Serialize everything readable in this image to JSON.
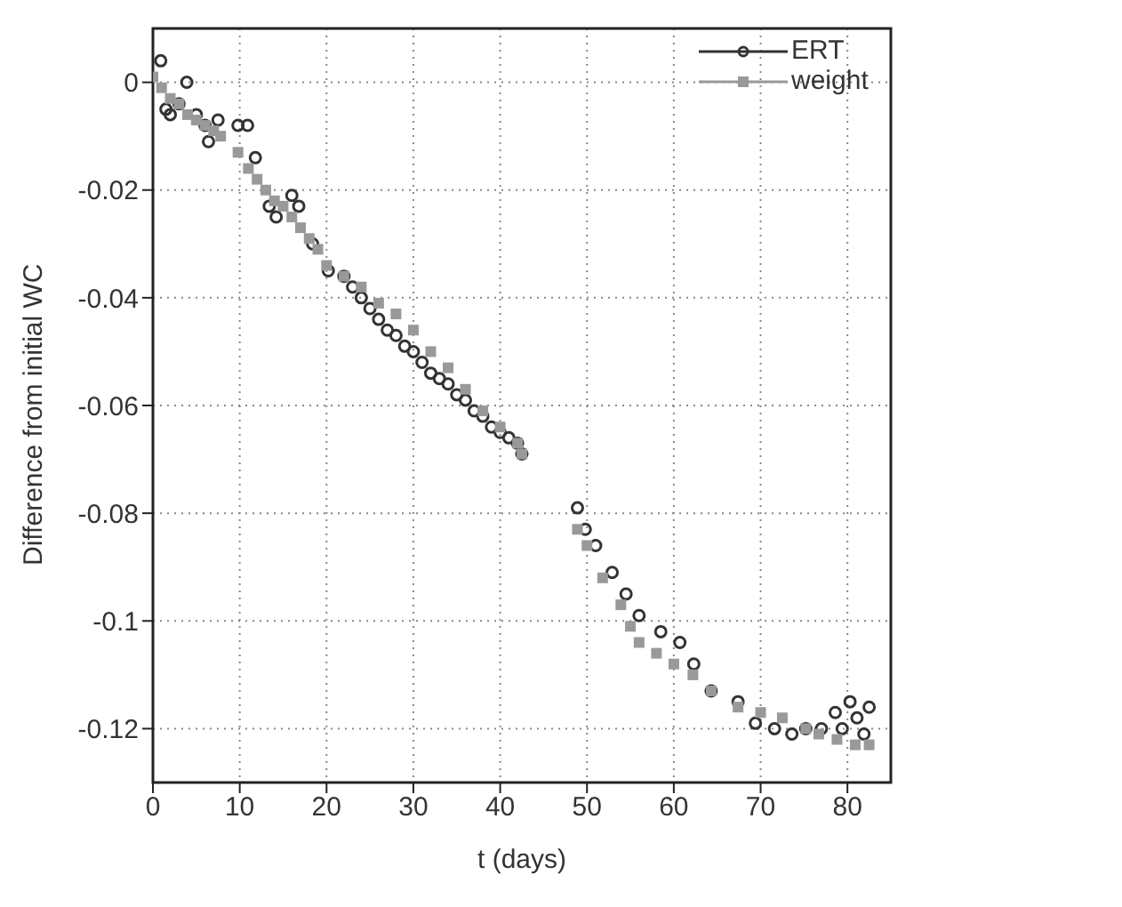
{
  "chart_data": {
    "type": "scatter",
    "xlabel": "t (days)",
    "ylabel": "Difference from initial WC",
    "xlim": [
      0,
      85
    ],
    "xticks": [
      0,
      10,
      20,
      30,
      40,
      50,
      60,
      70,
      80
    ],
    "ylim": [
      -0.13,
      0.01
    ],
    "yticks": [
      0,
      -0.02,
      -0.04,
      -0.06,
      -0.08,
      -0.1,
      -0.12
    ],
    "grid": true,
    "legend": "top right",
    "series": [
      {
        "name": "ERT",
        "color": "#333333",
        "marker": "circle",
        "x": [
          0.9,
          1.5,
          2,
          3,
          3.9,
          5,
          6,
          6.4,
          7.5,
          9.8,
          10.9,
          11.8,
          13.4,
          14.2,
          16,
          16.8,
          18.4,
          20.2,
          22,
          23,
          24,
          25,
          26,
          27,
          28,
          29,
          30,
          31,
          32,
          33,
          34,
          35,
          36,
          37,
          38,
          39,
          40,
          41,
          42,
          42.5,
          48.9,
          49.8,
          51,
          52.9,
          54.5,
          56,
          58.5,
          60.7,
          62.3,
          64.3,
          67.4,
          69.4,
          71.6,
          73.6,
          75.2,
          77,
          78.6,
          79.4,
          80.3,
          81.1,
          81.9,
          82.5
        ],
        "values": [
          0.004,
          -0.005,
          -0.006,
          -0.004,
          0,
          -0.006,
          -0.008,
          -0.011,
          -0.007,
          -0.008,
          -0.008,
          -0.014,
          -0.023,
          -0.025,
          -0.021,
          -0.023,
          -0.03,
          -0.035,
          -0.036,
          -0.038,
          -0.04,
          -0.042,
          -0.044,
          -0.046,
          -0.047,
          -0.049,
          -0.05,
          -0.052,
          -0.054,
          -0.055,
          -0.056,
          -0.058,
          -0.059,
          -0.061,
          -0.062,
          -0.064,
          -0.065,
          -0.066,
          -0.067,
          -0.069,
          -0.079,
          -0.083,
          -0.086,
          -0.091,
          -0.095,
          -0.099,
          -0.102,
          -0.104,
          -0.108,
          -0.113,
          -0.115,
          -0.119,
          -0.12,
          -0.121,
          -0.12,
          -0.12,
          -0.117,
          -0.12,
          -0.115,
          -0.118,
          -0.121,
          -0.116
        ]
      },
      {
        "name": "weight",
        "color": "#999999",
        "marker": "square",
        "x": [
          0,
          1,
          2,
          3,
          4,
          5,
          6,
          7,
          7.8,
          9.8,
          11,
          12,
          13,
          14,
          15,
          16,
          17,
          18,
          19,
          20,
          22,
          24,
          26,
          28,
          30,
          32,
          34,
          36,
          38,
          40,
          42,
          42.5,
          48.9,
          50,
          51.8,
          53.9,
          55,
          56,
          58,
          60,
          62.2,
          64.3,
          67.4,
          70,
          72.5,
          75.2,
          76.7,
          78.8,
          80.9,
          82.5
        ],
        "values": [
          0.001,
          -0.001,
          -0.003,
          -0.004,
          -0.006,
          -0.007,
          -0.008,
          -0.009,
          -0.01,
          -0.013,
          -0.016,
          -0.018,
          -0.02,
          -0.022,
          -0.023,
          -0.025,
          -0.027,
          -0.029,
          -0.031,
          -0.034,
          -0.036,
          -0.038,
          -0.041,
          -0.043,
          -0.046,
          -0.05,
          -0.053,
          -0.057,
          -0.061,
          -0.064,
          -0.067,
          -0.069,
          -0.083,
          -0.086,
          -0.092,
          -0.097,
          -0.101,
          -0.104,
          -0.106,
          -0.108,
          -0.11,
          -0.113,
          -0.116,
          -0.117,
          -0.118,
          -0.12,
          -0.121,
          -0.122,
          -0.123,
          -0.123
        ]
      }
    ]
  }
}
